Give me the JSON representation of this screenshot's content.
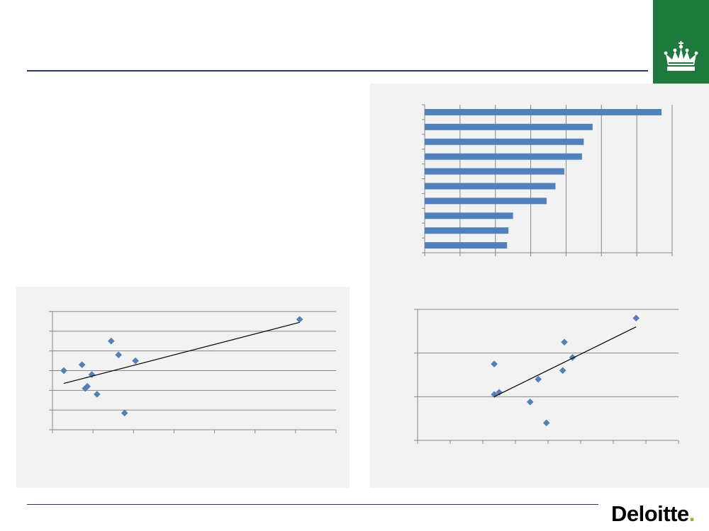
{
  "logo": {
    "name": "Deloitte",
    "dot": "."
  },
  "crest": {
    "icon": "royal-crown-icon",
    "background": "#1e7a3c"
  },
  "colors": {
    "accent_rule": "#1f3a73",
    "series": "#4f81bd",
    "grid": "#868686",
    "panel": "#f2f2f2"
  },
  "chart_data": [
    {
      "type": "scatter",
      "xlim": [
        0,
        7
      ],
      "ylim": [
        0,
        6
      ],
      "points": [
        {
          "x": 0.28,
          "y": 3.0
        },
        {
          "x": 0.73,
          "y": 3.3
        },
        {
          "x": 0.81,
          "y": 2.1
        },
        {
          "x": 0.86,
          "y": 2.2
        },
        {
          "x": 0.97,
          "y": 2.8
        },
        {
          "x": 1.1,
          "y": 1.8
        },
        {
          "x": 1.45,
          "y": 4.5
        },
        {
          "x": 1.63,
          "y": 3.8
        },
        {
          "x": 1.78,
          "y": 0.85
        },
        {
          "x": 2.05,
          "y": 3.5
        },
        {
          "x": 6.1,
          "y": 5.6
        }
      ],
      "trendline": [
        {
          "x": 0.28,
          "y": 2.35
        },
        {
          "x": 6.1,
          "y": 5.45
        }
      ],
      "grid": "horizontal"
    },
    {
      "type": "bar",
      "orientation": "horizontal",
      "xlim": [
        0,
        7
      ],
      "values": [
        6.7,
        4.75,
        4.5,
        4.45,
        3.95,
        3.7,
        3.45,
        2.5,
        2.37,
        2.33
      ],
      "grid": "vertical"
    },
    {
      "type": "scatter",
      "xlim": [
        0,
        8
      ],
      "ylim": [
        0,
        3
      ],
      "points": [
        {
          "x": 2.35,
          "y": 1.75
        },
        {
          "x": 2.35,
          "y": 1.05
        },
        {
          "x": 2.5,
          "y": 1.1
        },
        {
          "x": 3.45,
          "y": 0.88
        },
        {
          "x": 3.7,
          "y": 1.4
        },
        {
          "x": 3.95,
          "y": 0.4
        },
        {
          "x": 4.45,
          "y": 1.6
        },
        {
          "x": 4.5,
          "y": 2.25
        },
        {
          "x": 4.75,
          "y": 1.9
        },
        {
          "x": 6.7,
          "y": 2.8
        }
      ],
      "trendline": [
        {
          "x": 2.35,
          "y": 1.0
        },
        {
          "x": 6.7,
          "y": 2.6
        }
      ],
      "grid": "horizontal"
    }
  ]
}
